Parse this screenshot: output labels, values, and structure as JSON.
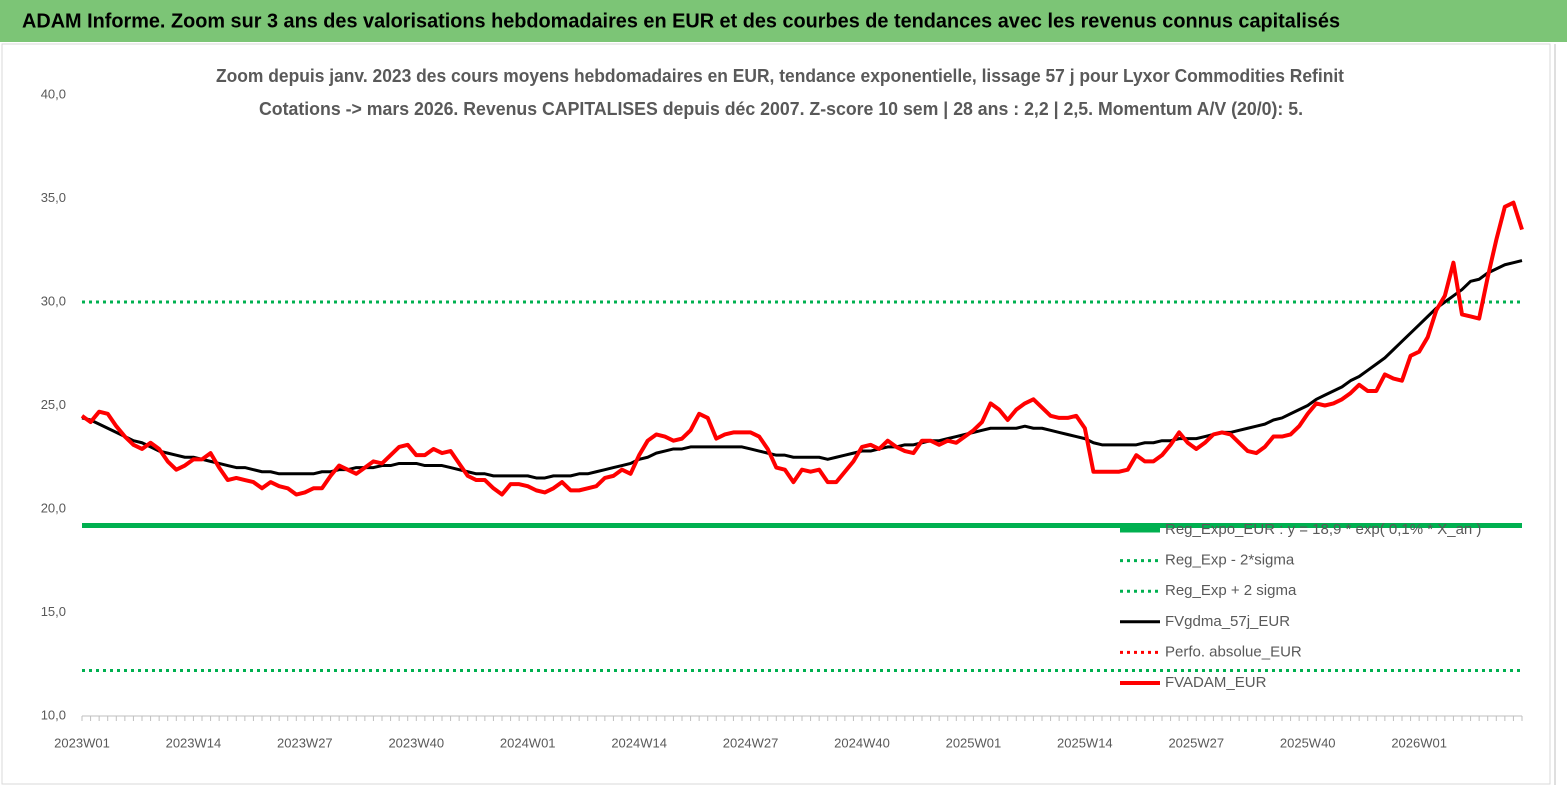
{
  "header": {
    "title": "ADAM Informe. Zoom sur 3 ans des valorisations hebdomadaires en EUR et des courbes de tendances avec les revenus connus capitalisés"
  },
  "chart_data": {
    "type": "line",
    "title": "Zoom depuis janv. 2023 des cours moyens hebdomadaires en EUR, tendance exponentielle, lissage 57 j pour Lyxor Commodities Refinit",
    "subtitle": "Cotations -> mars 2026. Revenus CAPITALISES depuis déc 2007. Z-score 10 sem | 28 ans : 2,2 | 2,5. Momentum A/V (20/0): 5.",
    "categories": [
      "2023W01",
      null,
      null,
      null,
      null,
      null,
      null,
      null,
      null,
      null,
      null,
      null,
      null,
      "2023W14",
      null,
      null,
      null,
      null,
      null,
      null,
      null,
      null,
      null,
      null,
      null,
      null,
      "2023W27",
      null,
      null,
      null,
      null,
      null,
      null,
      null,
      null,
      null,
      null,
      null,
      null,
      "2023W40",
      null,
      null,
      null,
      null,
      null,
      null,
      null,
      null,
      null,
      null,
      null,
      null,
      "2024W01",
      null,
      null,
      null,
      null,
      null,
      null,
      null,
      null,
      null,
      null,
      null,
      null,
      "2024W14",
      null,
      null,
      null,
      null,
      null,
      null,
      null,
      null,
      null,
      null,
      null,
      null,
      "2024W27",
      null,
      null,
      null,
      null,
      null,
      null,
      null,
      null,
      null,
      null,
      null,
      null,
      "2024W40",
      null,
      null,
      null,
      null,
      null,
      null,
      null,
      null,
      null,
      null,
      null,
      null,
      "2025W01",
      null,
      null,
      null,
      null,
      null,
      null,
      null,
      null,
      null,
      null,
      null,
      null,
      "2025W14",
      null,
      null,
      null,
      null,
      null,
      null,
      null,
      null,
      null,
      null,
      null,
      null,
      "2025W27",
      null,
      null,
      null,
      null,
      null,
      null,
      null,
      null,
      null,
      null,
      null,
      null,
      "2025W40",
      null,
      null,
      null,
      null,
      null,
      null,
      null,
      null,
      null,
      null,
      null,
      null,
      "2026W01",
      null,
      null,
      null,
      null,
      null,
      null,
      null,
      null,
      null,
      null,
      null,
      null
    ],
    "series": [
      {
        "name": "Reg_Expo_EUR : y = 18,9 * exp( 0,1% * X_an )",
        "color": "#00b050",
        "dash": "solid",
        "value": 19.2
      },
      {
        "name": "Reg_Exp - 2*sigma",
        "color": "#00b050",
        "dash": "dotted",
        "value": 12.2
      },
      {
        "name": "Reg_Exp + 2 sigma",
        "color": "#00b050",
        "dash": "dotted",
        "value": 30.0
      },
      {
        "name": "FVgdma_57j_EUR",
        "color": "#000000",
        "dash": "solid",
        "values": [
          24.4,
          24.3,
          24.1,
          23.9,
          23.7,
          23.5,
          23.3,
          23.2,
          23.0,
          22.8,
          22.7,
          22.6,
          22.5,
          22.5,
          22.4,
          22.3,
          22.2,
          22.1,
          22.0,
          22.0,
          21.9,
          21.8,
          21.8,
          21.7,
          21.7,
          21.7,
          21.7,
          21.7,
          21.8,
          21.8,
          21.9,
          21.9,
          22.0,
          22.0,
          22.0,
          22.1,
          22.1,
          22.2,
          22.2,
          22.2,
          22.1,
          22.1,
          22.1,
          22.0,
          21.9,
          21.8,
          21.7,
          21.7,
          21.6,
          21.6,
          21.6,
          21.6,
          21.6,
          21.5,
          21.5,
          21.6,
          21.6,
          21.6,
          21.7,
          21.7,
          21.8,
          21.9,
          22.0,
          22.1,
          22.2,
          22.4,
          22.5,
          22.7,
          22.8,
          22.9,
          22.9,
          23.0,
          23.0,
          23.0,
          23.0,
          23.0,
          23.0,
          23.0,
          22.9,
          22.8,
          22.7,
          22.6,
          22.6,
          22.5,
          22.5,
          22.5,
          22.5,
          22.4,
          22.5,
          22.6,
          22.7,
          22.8,
          22.8,
          22.9,
          23.0,
          23.0,
          23.1,
          23.1,
          23.2,
          23.3,
          23.3,
          23.4,
          23.5,
          23.6,
          23.7,
          23.8,
          23.9,
          23.9,
          23.9,
          23.9,
          24.0,
          23.9,
          23.9,
          23.8,
          23.7,
          23.6,
          23.5,
          23.4,
          23.2,
          23.1,
          23.1,
          23.1,
          23.1,
          23.1,
          23.2,
          23.2,
          23.3,
          23.3,
          23.4,
          23.4,
          23.4,
          23.5,
          23.6,
          23.7,
          23.7,
          23.8,
          23.9,
          24.0,
          24.1,
          24.3,
          24.4,
          24.6,
          24.8,
          25.0,
          25.3,
          25.5,
          25.7,
          25.9,
          26.2,
          26.4,
          26.7,
          27.0,
          27.3,
          27.7,
          28.1,
          28.5,
          28.9,
          29.3,
          29.7,
          30.0,
          30.3,
          30.6,
          31.0,
          31.1,
          31.4,
          31.6,
          31.8,
          31.9,
          32.0
        ]
      },
      {
        "name": "Perfo. absolue_EUR",
        "color": "#ff0000",
        "dash": "dotted"
      },
      {
        "name": "FVADAM_EUR",
        "color": "#ff0000",
        "dash": "solid",
        "values": [
          24.5,
          24.2,
          24.7,
          24.6,
          24.0,
          23.5,
          23.1,
          22.9,
          23.2,
          22.9,
          22.3,
          21.9,
          22.1,
          22.4,
          22.4,
          22.7,
          22.0,
          21.4,
          21.5,
          21.4,
          21.3,
          21.0,
          21.3,
          21.1,
          21.0,
          20.7,
          20.8,
          21.0,
          21.0,
          21.6,
          22.1,
          21.9,
          21.7,
          22.0,
          22.3,
          22.2,
          22.6,
          23.0,
          23.1,
          22.6,
          22.6,
          22.9,
          22.7,
          22.8,
          22.2,
          21.6,
          21.4,
          21.4,
          21.0,
          20.7,
          21.2,
          21.2,
          21.1,
          20.9,
          20.8,
          21.0,
          21.3,
          20.9,
          20.9,
          21.0,
          21.1,
          21.5,
          21.6,
          21.9,
          21.7,
          22.6,
          23.3,
          23.6,
          23.5,
          23.3,
          23.4,
          23.8,
          24.6,
          24.4,
          23.4,
          23.6,
          23.7,
          23.7,
          23.7,
          23.5,
          22.9,
          22.0,
          21.9,
          21.3,
          21.9,
          21.8,
          21.9,
          21.3,
          21.3,
          21.8,
          22.3,
          23.0,
          23.1,
          22.9,
          23.3,
          23.0,
          22.8,
          22.7,
          23.3,
          23.3,
          23.1,
          23.3,
          23.2,
          23.5,
          23.8,
          24.2,
          25.1,
          24.8,
          24.3,
          24.8,
          25.1,
          25.3,
          24.9,
          24.5,
          24.4,
          24.4,
          24.5,
          23.9,
          21.8,
          21.8,
          21.8,
          21.8,
          21.9,
          22.6,
          22.3,
          22.3,
          22.6,
          23.1,
          23.7,
          23.2,
          22.9,
          23.2,
          23.6,
          23.7,
          23.6,
          23.2,
          22.8,
          22.7,
          23.0,
          23.5,
          23.5,
          23.6,
          24.0,
          24.6,
          25.1,
          25.0,
          25.1,
          25.3,
          25.6,
          26.0,
          25.7,
          25.7,
          26.5,
          26.3,
          26.2,
          27.4,
          27.6,
          28.3,
          29.6,
          30.3,
          31.9,
          29.4,
          29.3,
          29.2,
          31.2,
          33.0,
          34.6,
          34.8,
          33.5
        ]
      }
    ],
    "ylim": [
      10,
      40
    ],
    "yticks": [
      {
        "value": 10,
        "label": "10,0"
      },
      {
        "value": 15,
        "label": "15,0"
      },
      {
        "value": 20,
        "label": "20,0"
      },
      {
        "value": 25,
        "label": "25,0"
      },
      {
        "value": 30,
        "label": "30,0"
      },
      {
        "value": 35,
        "label": "35,0"
      },
      {
        "value": 40,
        "label": "40,0"
      }
    ],
    "grid": false,
    "legend": "lower right"
  }
}
